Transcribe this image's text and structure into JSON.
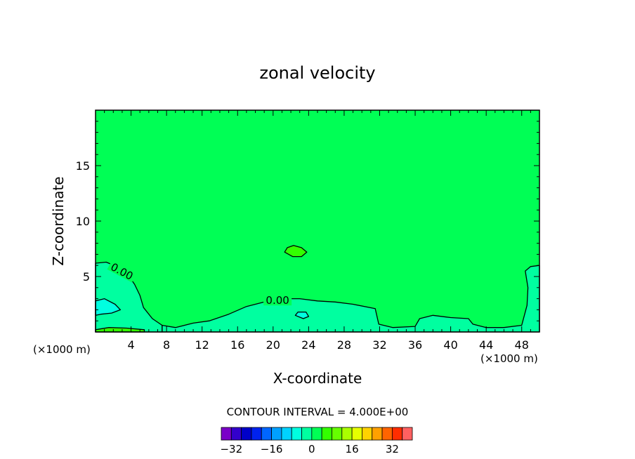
{
  "chart_data": {
    "type": "heatmap",
    "title": "zonal velocity",
    "xlabel": "X-coordinate",
    "ylabel": "Z-coordinate",
    "x_unit_note": "(×1000 m)",
    "xlim": [
      0,
      50
    ],
    "ylim": [
      0,
      20
    ],
    "x_ticks": [
      4,
      8,
      12,
      16,
      20,
      24,
      28,
      32,
      36,
      40,
      44,
      48
    ],
    "y_ticks": [
      5,
      10,
      15
    ],
    "background_level": 0,
    "contour_labels": [
      {
        "text": "0.00",
        "x": 3.0,
        "z": 5.5
      },
      {
        "text": "0.00",
        "x": 20.5,
        "z": 2.9
      }
    ],
    "regions": [
      {
        "name": "slightly-positive-blob",
        "level": 4,
        "polygon": [
          [
            21.3,
            7.2
          ],
          [
            21.6,
            7.6
          ],
          [
            22.3,
            7.8
          ],
          [
            23.2,
            7.6
          ],
          [
            23.8,
            7.2
          ],
          [
            23.2,
            6.8
          ],
          [
            22.2,
            6.8
          ]
        ]
      },
      {
        "name": "negative-left-low",
        "level": -4,
        "polygon": [
          [
            0,
            6.2
          ],
          [
            1.2,
            6.3
          ],
          [
            2.4,
            5.9
          ],
          [
            3.6,
            5.2
          ],
          [
            4.4,
            4.3
          ],
          [
            5.0,
            3.3
          ],
          [
            5.4,
            2.2
          ],
          [
            6.4,
            1.2
          ],
          [
            7.5,
            0.6
          ],
          [
            7.5,
            0
          ],
          [
            0,
            0
          ]
        ]
      },
      {
        "name": "negative-bottom-band",
        "level": -4,
        "polygon": [
          [
            7.5,
            0.6
          ],
          [
            9.0,
            0.4
          ],
          [
            11.0,
            0.8
          ],
          [
            12.8,
            1.0
          ],
          [
            15.0,
            1.6
          ],
          [
            17.0,
            2.3
          ],
          [
            19.0,
            2.7
          ],
          [
            21.0,
            3.0
          ],
          [
            23.0,
            3.0
          ],
          [
            25.0,
            2.8
          ],
          [
            27.0,
            2.7
          ],
          [
            29.0,
            2.5
          ],
          [
            31.5,
            2.1
          ],
          [
            31.9,
            0.7
          ],
          [
            33.5,
            0.4
          ],
          [
            36.0,
            0.5
          ],
          [
            36.5,
            1.2
          ],
          [
            38.0,
            1.5
          ],
          [
            40.0,
            1.3
          ],
          [
            42.0,
            1.2
          ],
          [
            42.5,
            0.7
          ],
          [
            44.0,
            0.4
          ],
          [
            46.0,
            0.4
          ],
          [
            48.0,
            0.6
          ],
          [
            48.6,
            2.4
          ],
          [
            48.7,
            4.0
          ],
          [
            48.4,
            5.5
          ],
          [
            49.0,
            5.9
          ],
          [
            50,
            6.0
          ],
          [
            50,
            0
          ],
          [
            7.5,
            0
          ]
        ]
      },
      {
        "name": "negative-inner-left",
        "level": -8,
        "polygon": [
          [
            0,
            2.8
          ],
          [
            1.0,
            3.0
          ],
          [
            2.2,
            2.5
          ],
          [
            2.8,
            2.0
          ],
          [
            1.8,
            1.7
          ],
          [
            0.6,
            1.6
          ],
          [
            0,
            1.5
          ]
        ]
      },
      {
        "name": "negative-inner-mid",
        "level": -8,
        "polygon": [
          [
            22.5,
            1.5
          ],
          [
            22.8,
            1.8
          ],
          [
            23.7,
            1.8
          ],
          [
            24.0,
            1.4
          ],
          [
            23.4,
            1.2
          ]
        ]
      },
      {
        "name": "positive-surface-strip",
        "level": 4,
        "polygon": [
          [
            0,
            0.2
          ],
          [
            1.5,
            0.4
          ],
          [
            3.5,
            0.35
          ],
          [
            5.5,
            0.2
          ],
          [
            5.5,
            0
          ],
          [
            0,
            0
          ]
        ]
      }
    ],
    "colorbar": {
      "title": "CONTOUR INTERVAL = 4.000E+00",
      "levels": [
        -36,
        -32,
        -28,
        -24,
        -20,
        -16,
        -12,
        -8,
        -4,
        0,
        4,
        8,
        12,
        16,
        20,
        24,
        28,
        32,
        36
      ],
      "tick_labels": [
        "−32",
        "−16",
        "0",
        "16",
        "32"
      ],
      "tick_values": [
        -32,
        -16,
        0,
        16,
        32
      ]
    },
    "colors": {
      "-36": "#7a00c8",
      "-32": "#3300cc",
      "-28": "#0000c8",
      "-24": "#0022ee",
      "-20": "#0066ff",
      "-16": "#00a0ff",
      "-12": "#00d2ff",
      "-8": "#00ffe0",
      "-4": "#00ffa0",
      "0": "#00ff55",
      "4": "#33ff00",
      "8": "#66ff00",
      "12": "#aaff00",
      "16": "#e6ff00",
      "20": "#ffd200",
      "24": "#ffa000",
      "28": "#ff6400",
      "32": "#ff2d00",
      "36": "#ff6060",
      "40": "#ff9a9a"
    }
  }
}
